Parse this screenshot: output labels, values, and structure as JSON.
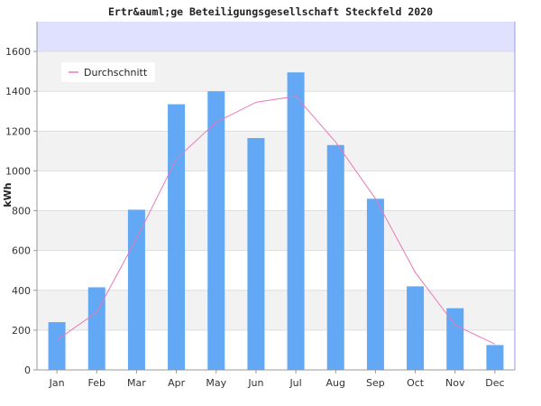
{
  "chart_data": {
    "type": "bar",
    "title": "Ertr&auml;ge Beteiligungsgesellschaft Steckfeld 2020",
    "xlabel": "",
    "ylabel": "kWh",
    "categories": [
      "Jan",
      "Feb",
      "Mar",
      "Apr",
      "May",
      "Jun",
      "Jul",
      "Aug",
      "Sep",
      "Oct",
      "Nov",
      "Dec"
    ],
    "series": [
      {
        "type": "bar",
        "values": [
          240,
          415,
          805,
          1335,
          1400,
          1165,
          1495,
          1130,
          860,
          420,
          310,
          125
        ],
        "color": "#62a8f4"
      },
      {
        "name": "Durchschnitt",
        "type": "line",
        "values": [
          150,
          290,
          660,
          1060,
          1245,
          1345,
          1375,
          1145,
          860,
          490,
          225,
          130
        ],
        "color": "#e87ab6"
      }
    ],
    "ylim": [
      0,
      1750
    ],
    "yticks": [
      "0",
      "200",
      "400",
      "600",
      "800",
      "1000",
      "1200",
      "1400",
      "1600"
    ],
    "grid": true,
    "legend": "top-left"
  },
  "colors": {
    "plot_band_a": "#f2f2f2",
    "plot_band_b": "#ffffff",
    "top_band": "#e0e0ff",
    "axis": "#999999",
    "right_border": "#9999ee"
  }
}
